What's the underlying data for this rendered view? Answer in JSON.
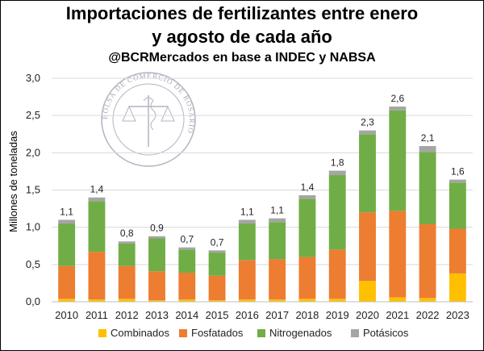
{
  "header": {
    "title_line1": "Importaciones de fertilizantes entre enero",
    "title_line2": "y agosto de cada año",
    "subtitle": "@BCRMercados en base a INDEC y NABSA"
  },
  "watermark": {
    "text": "BOLSA DE COMERCIO DE ROSARIO"
  },
  "chart_data": {
    "type": "bar",
    "stacked": true,
    "ylabel": "Millones de toneladas",
    "ylim": [
      0,
      3.0
    ],
    "yticks": [
      "0,0",
      "0,5",
      "1,0",
      "1,5",
      "2,0",
      "2,5",
      "3,0"
    ],
    "grid": true,
    "legend_position": "bottom",
    "categories": [
      "2010",
      "2011",
      "2012",
      "2013",
      "2014",
      "2015",
      "2016",
      "2017",
      "2018",
      "2019",
      "2020",
      "2021",
      "2022",
      "2023"
    ],
    "series": [
      {
        "name": "Combinados",
        "color": "#ffc000",
        "values": [
          0.04,
          0.03,
          0.04,
          0.02,
          0.03,
          0.02,
          0.03,
          0.03,
          0.04,
          0.04,
          0.28,
          0.06,
          0.05,
          0.38
        ]
      },
      {
        "name": "Fosfatados",
        "color": "#ed7d31",
        "values": [
          0.44,
          0.64,
          0.44,
          0.39,
          0.36,
          0.33,
          0.53,
          0.54,
          0.56,
          0.66,
          0.92,
          1.16,
          0.99,
          0.6
        ]
      },
      {
        "name": "Nitrogenados",
        "color": "#70ad47",
        "values": [
          0.57,
          0.68,
          0.3,
          0.44,
          0.31,
          0.31,
          0.49,
          0.5,
          0.78,
          1.0,
          1.05,
          1.35,
          0.97,
          0.62
        ]
      },
      {
        "name": "Potásicos",
        "color": "#a5a5a5",
        "values": [
          0.05,
          0.05,
          0.03,
          0.03,
          0.03,
          0.03,
          0.05,
          0.05,
          0.05,
          0.06,
          0.05,
          0.05,
          0.08,
          0.04
        ]
      }
    ],
    "totals_labels": [
      "1,1",
      "1,4",
      "0,8",
      "0,9",
      "0,7",
      "0,7",
      "1,1",
      "1,1",
      "1,4",
      "1,8",
      "2,3",
      "2,6",
      "2,1",
      "1,6"
    ]
  }
}
